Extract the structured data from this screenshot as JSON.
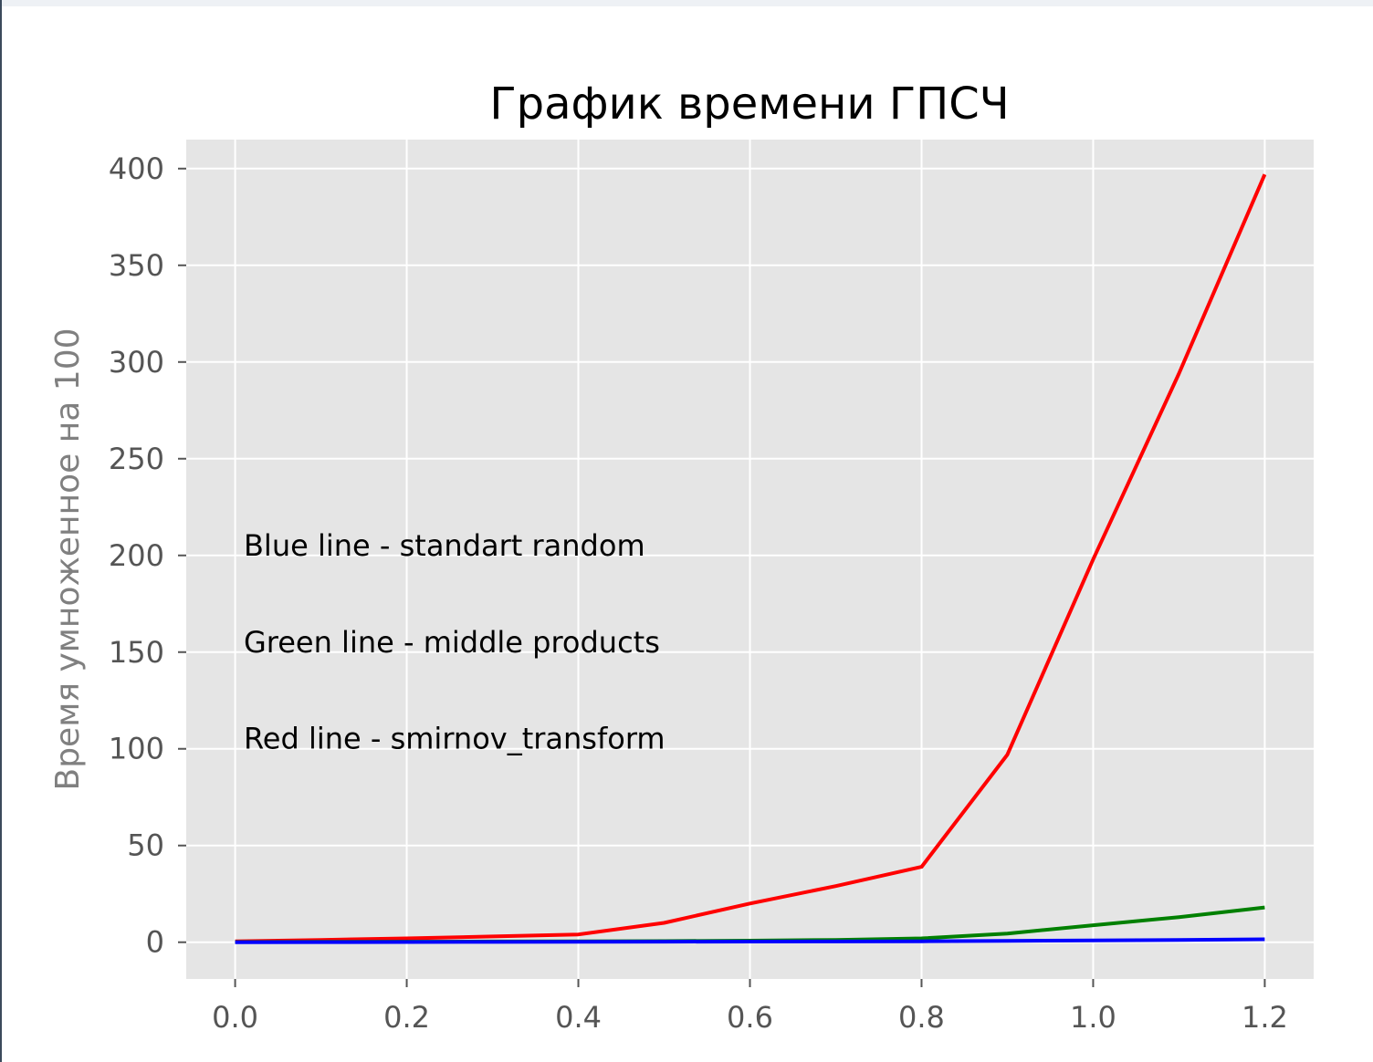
{
  "chart_data": {
    "type": "line",
    "title": "График времени ГПСЧ",
    "xlabel": "",
    "ylabel": "Время умноженное на 100",
    "xlim": [
      -0.057,
      1.257
    ],
    "ylim": [
      -19,
      415
    ],
    "x_ticks": [
      "0.0",
      "0.2",
      "0.4",
      "0.6",
      "0.8",
      "1.0",
      "1.2"
    ],
    "y_ticks": [
      "0",
      "50",
      "100",
      "150",
      "200",
      "250",
      "300",
      "350",
      "400"
    ],
    "grid": true,
    "series": [
      {
        "color": "#ff0000",
        "x": [
          0.0,
          0.1,
          0.2,
          0.3,
          0.4,
          0.5,
          0.6,
          0.7,
          0.8,
          0.9,
          1.0,
          1.1,
          1.2
        ],
        "y": [
          0.5,
          1.2,
          2.0,
          3.0,
          4.0,
          10.0,
          20.0,
          29.0,
          39.0,
          97.0,
          198.0,
          294.0,
          397.0
        ]
      },
      {
        "color": "#008000",
        "x": [
          0.0,
          0.1,
          0.2,
          0.3,
          0.4,
          0.5,
          0.6,
          0.7,
          0.8,
          0.9,
          1.0,
          1.1,
          1.2
        ],
        "y": [
          0.1,
          0.2,
          0.3,
          0.4,
          0.5,
          0.6,
          0.8,
          1.2,
          2.0,
          4.5,
          8.8,
          13.0,
          18.0
        ]
      },
      {
        "color": "#0000ff",
        "x": [
          0.0,
          0.1,
          0.2,
          0.3,
          0.4,
          0.5,
          0.6,
          0.7,
          0.8,
          0.9,
          1.0,
          1.1,
          1.2
        ],
        "y": [
          0.0,
          0.05,
          0.1,
          0.15,
          0.2,
          0.3,
          0.35,
          0.4,
          0.5,
          0.7,
          0.9,
          1.2,
          1.5
        ]
      }
    ],
    "annotations": [
      {
        "text": "Blue line - standart random",
        "x": 0.01,
        "y": 200
      },
      {
        "text": "Green line - middle products",
        "x": 0.01,
        "y": 150
      },
      {
        "text": "Red line - smirnov_transform",
        "x": 0.01,
        "y": 100
      }
    ]
  }
}
